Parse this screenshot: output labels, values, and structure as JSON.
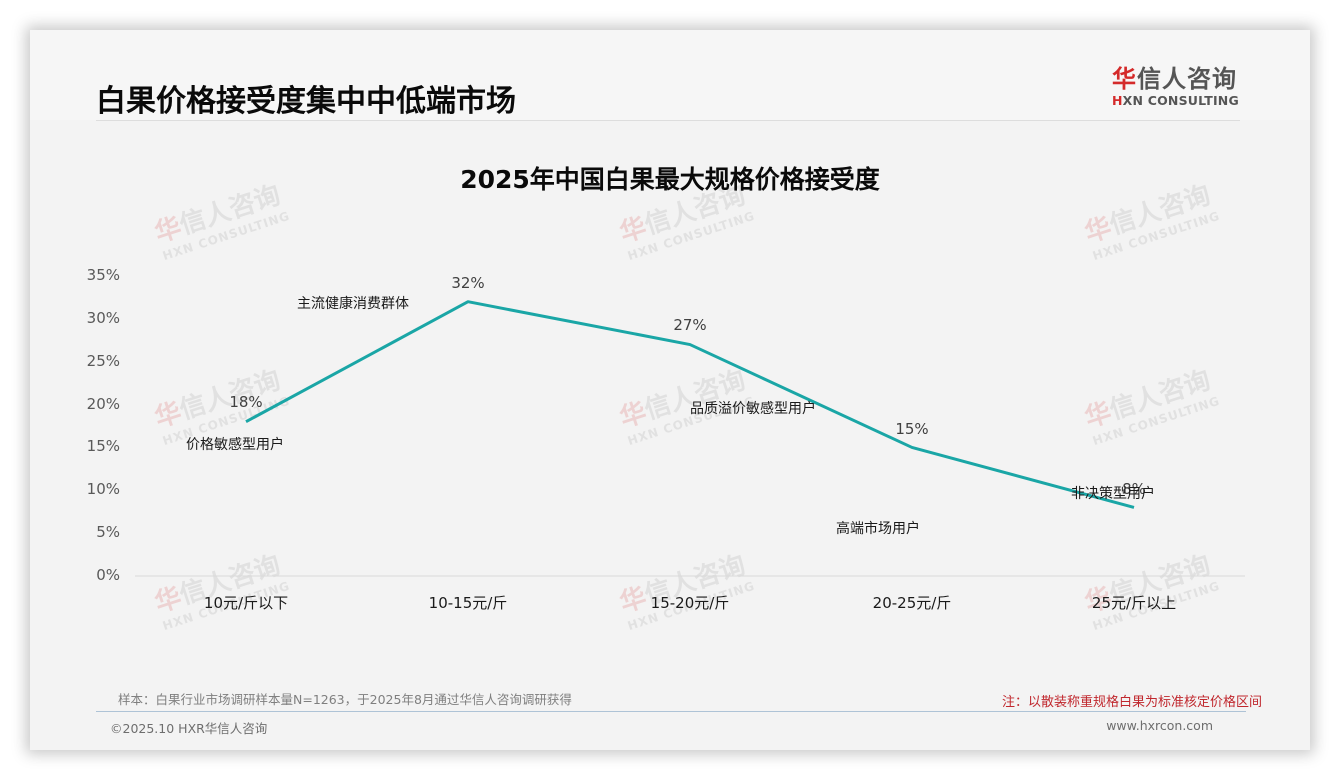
{
  "header": {
    "title": "白果价格接受度集中中低端市场",
    "logo_cn_first": "华",
    "logo_cn_rest": "信人咨询",
    "logo_en_first": "H",
    "logo_en_rest": "XN CONSULTING"
  },
  "watermark": {
    "cn_first": "华",
    "cn_rest": "信人咨询",
    "en": "HXN CONSULTING"
  },
  "chart_data": {
    "type": "line",
    "title": "2025年中国白果最大规格价格接受度",
    "xlabel": "",
    "ylabel": "",
    "categories": [
      "10元/斤以下",
      "10-15元/斤",
      "15-20元/斤",
      "20-25元/斤",
      "25元/斤以上"
    ],
    "values": [
      18,
      32,
      27,
      15,
      8
    ],
    "value_labels": [
      "18%",
      "32%",
      "27%",
      "15%",
      "8%"
    ],
    "segment_annotations": [
      "价格敏感型用户",
      "主流健康消费群体",
      "品质溢价敏感型用户",
      "高端市场用户",
      "非决策型用户"
    ],
    "y_ticks": [
      "0%",
      "5%",
      "10%",
      "15%",
      "20%",
      "25%",
      "30%",
      "35%"
    ],
    "ylim": [
      0,
      35
    ],
    "grid": false,
    "legend": "none",
    "line_color": "#1aa6a6"
  },
  "footer": {
    "source": "样本：白果行业市场调研样本量N=1263，于2025年8月通过华信人咨询调研获得",
    "note": "注：以散装称重规格白果为标准核定价格区间",
    "copyright": "©2025.10 HXR华信人咨询",
    "website": "www.hxrcon.com"
  }
}
